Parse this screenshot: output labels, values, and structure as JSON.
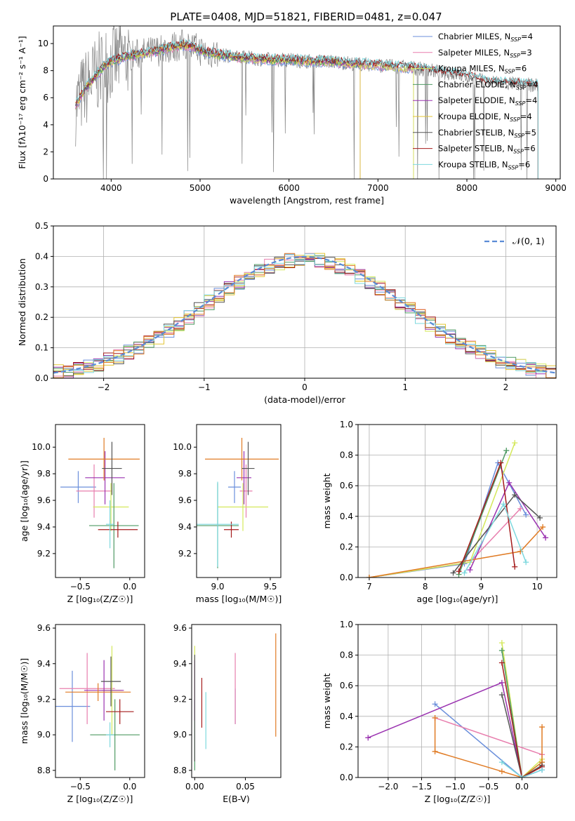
{
  "figure": {
    "title": "PLATE=0408, MJD=51821, FIBERID=0481, z=0.047"
  },
  "chart_data": [
    {
      "id": "spectrum",
      "type": "line",
      "xlabel": "wavelength [Angstrom, rest frame]",
      "ylabel": "Flux [fλ10⁻¹⁷ erg cm⁻² s⁻¹ A⁻¹]",
      "xlim": [
        3350,
        9050
      ],
      "ylim": [
        0,
        11.3
      ],
      "xticks": [
        4000,
        5000,
        6000,
        7000,
        8000,
        9000
      ],
      "yticks": [
        0,
        2,
        4,
        6,
        8,
        10
      ],
      "legend_position": "top-right",
      "data_series": {
        "x": [
          3600,
          3700,
          3800,
          3900,
          4000,
          4200,
          4400,
          4600,
          4800,
          4900,
          5000,
          5200,
          5400,
          5600,
          5800,
          6000,
          6200,
          6400,
          6600,
          6800,
          7000,
          7200,
          7400,
          7600,
          7800,
          8000,
          8200,
          8400,
          8600,
          8800
        ],
        "y": [
          5.4,
          6.6,
          7.4,
          8.2,
          8.7,
          9.1,
          9.3,
          9.6,
          9.9,
          9.8,
          9.5,
          9.2,
          9.0,
          8.9,
          8.8,
          8.8,
          8.7,
          8.7,
          8.6,
          8.5,
          8.4,
          8.3,
          8.2,
          8.0,
          7.8,
          7.6,
          7.2,
          7.1,
          7.0,
          6.9
        ]
      },
      "series": [
        {
          "name": "Chabrier MILES, N_SSP=4",
          "label_text": "Chabrier MILES, N",
          "sub": "SSP",
          "label_tail": "=4",
          "color": "#6b8fdb",
          "xmax": 7400
        },
        {
          "name": "Salpeter MILES, N_SSP=3",
          "label_text": "Salpeter MILES, N",
          "sub": "SSP",
          "label_tail": "=3",
          "color": "#e87fae",
          "xmax": 7400
        },
        {
          "name": "Kroupa MILES, N_SSP=6",
          "label_text": "Kroupa MILES, N",
          "sub": "SSP",
          "label_tail": "=6",
          "color": "#d4e85a",
          "xmax": 7400
        },
        {
          "name": "Chabrier ELODIE, N_SSP=4",
          "label_text": "Chabrier ELODIE, N",
          "sub": "SSP",
          "label_tail": "=4",
          "color": "#4e9a63",
          "xmax": 6800
        },
        {
          "name": "Salpeter ELODIE, N_SSP=4",
          "label_text": "Salpeter ELODIE, N",
          "sub": "SSP",
          "label_tail": "=4",
          "color": "#9a32b0",
          "xmax": 6800
        },
        {
          "name": "Kroupa ELODIE, N_SSP=4",
          "label_text": "Kroupa ELODIE, N",
          "sub": "SSP",
          "label_tail": "=4",
          "color": "#e3c535",
          "xmax": 6800
        },
        {
          "name": "Chabrier STELIB, N_SSP=5",
          "label_text": "Chabrier STELIB, N",
          "sub": "SSP",
          "label_tail": "=5",
          "color": "#555555",
          "xmax": 8800
        },
        {
          "name": "Salpeter STELIB, N_SSP=6",
          "label_text": "Salpeter STELIB, N",
          "sub": "SSP",
          "label_tail": "=6",
          "color": "#a51c1c",
          "xmax": 8800
        },
        {
          "name": "Kroupa STELIB, N_SSP=6",
          "label_text": "Kroupa STELIB, N",
          "sub": "SSP",
          "label_tail": "=6",
          "color": "#7dd8de",
          "xmax": 8800
        }
      ]
    },
    {
      "id": "residuals",
      "type": "area",
      "xlabel": "(data-model)/error",
      "ylabel": "Normed distribution",
      "xlim": [
        -2.5,
        2.5
      ],
      "ylim": [
        0,
        0.5
      ],
      "xticks": [
        -2,
        -1,
        0,
        1,
        2
      ],
      "yticks": [
        0.0,
        0.1,
        0.2,
        0.3,
        0.4,
        0.5
      ],
      "grid": true,
      "legend": "𝒩(0, 1)",
      "legend_position": "top-right",
      "bin_width": 0.1,
      "histogram_colors": [
        "#6b8fdb",
        "#e87fae",
        "#d4e85a",
        "#4e9a63",
        "#9a32b0",
        "#e3c535",
        "#555555",
        "#a51c1c",
        "#7dd8de",
        "#e07b24"
      ],
      "curve": {
        "name": "𝒩(0, 1)",
        "color": "#5b8bd6",
        "style": "dashed"
      }
    },
    {
      "id": "age_vs_Z",
      "type": "scatter",
      "xlabel": "Z [log₁₀(Z/Z☉)]",
      "ylabel": "age  [log₁₀(age/yr)]",
      "xlim": [
        -0.75,
        0.15
      ],
      "ylim": [
        9.02,
        10.17
      ],
      "xticks": [
        -0.5,
        0.0
      ],
      "yticks": [
        9.2,
        9.4,
        9.6,
        9.8,
        10.0
      ],
      "points": [
        {
          "x": -0.52,
          "y": 9.7,
          "xerr": 0.18,
          "yerr": 0.12,
          "color": "#6b8fdb"
        },
        {
          "x": -0.36,
          "y": 9.67,
          "xerr": 0.18,
          "yerr": 0.2,
          "color": "#e87fae"
        },
        {
          "x": -0.19,
          "y": 9.55,
          "xerr": 0.18,
          "yerr": 0.18,
          "color": "#d4e85a"
        },
        {
          "x": -0.16,
          "y": 9.41,
          "xerr": 0.25,
          "yerr": 0.32,
          "color": "#4e9a63"
        },
        {
          "x": -0.25,
          "y": 9.77,
          "xerr": 0.2,
          "yerr": 0.2,
          "color": "#9a32b0"
        },
        {
          "x": -0.26,
          "y": 9.91,
          "xerr": 0.36,
          "yerr": 0.16,
          "color": "#e07b24"
        },
        {
          "x": -0.18,
          "y": 9.84,
          "xerr": 0.1,
          "yerr": 0.2,
          "color": "#555555"
        },
        {
          "x": -0.12,
          "y": 9.38,
          "xerr": 0.2,
          "yerr": 0.06,
          "color": "#a51c1c"
        },
        {
          "x": -0.2,
          "y": 9.42,
          "xerr": 0.04,
          "yerr": 0.18,
          "color": "#7dd8de"
        }
      ]
    },
    {
      "id": "age_vs_mass",
      "type": "scatter",
      "xlabel": "mass [log₁₀(M/M☉)]",
      "ylabel": "",
      "xlim": [
        8.8,
        9.6
      ],
      "ylim": [
        9.02,
        10.17
      ],
      "xticks": [
        9.0,
        9.5
      ],
      "yticks": [
        9.2,
        9.4,
        9.6,
        9.8,
        10.0
      ],
      "points": [
        {
          "x": 9.16,
          "y": 9.7,
          "xerr": 0.06,
          "yerr": 0.12,
          "color": "#6b8fdb"
        },
        {
          "x": 9.27,
          "y": 9.67,
          "xerr": 0.06,
          "yerr": 0.2,
          "color": "#e87fae"
        },
        {
          "x": 9.24,
          "y": 9.55,
          "xerr": 0.24,
          "yerr": 0.18,
          "color": "#d4e85a"
        },
        {
          "x": 9.0,
          "y": 9.41,
          "xerr": 0.2,
          "yerr": 0.32,
          "color": "#4e9a63"
        },
        {
          "x": 9.25,
          "y": 9.77,
          "xerr": 0.07,
          "yerr": 0.2,
          "color": "#9a32b0"
        },
        {
          "x": 9.23,
          "y": 9.91,
          "xerr": 0.35,
          "yerr": 0.16,
          "color": "#e07b24"
        },
        {
          "x": 9.29,
          "y": 9.84,
          "xerr": 0.06,
          "yerr": 0.2,
          "color": "#555555"
        },
        {
          "x": 9.13,
          "y": 9.38,
          "xerr": 0.07,
          "yerr": 0.06,
          "color": "#a51c1c"
        },
        {
          "x": 9.0,
          "y": 9.42,
          "xerr": 0.2,
          "yerr": 0.32,
          "color": "#7dd8de"
        }
      ]
    },
    {
      "id": "weight_vs_age",
      "type": "line",
      "xlabel": "age  [log₁₀(age/yr)]",
      "ylabel": "mass weight",
      "xlim": [
        6.8,
        10.35
      ],
      "ylim": [
        0.0,
        1.0
      ],
      "xticks": [
        7,
        8,
        9,
        10
      ],
      "yticks": [
        0.0,
        0.2,
        0.4,
        0.6,
        0.8,
        1.0
      ],
      "grid": true,
      "series": [
        {
          "color": "#6b8fdb",
          "x": [
            7.0,
            8.7,
            9.3,
            9.8
          ],
          "y": [
            0.0,
            0.09,
            0.75,
            0.41
          ]
        },
        {
          "color": "#e87fae",
          "x": [
            7.0,
            8.8,
            9.7
          ],
          "y": [
            0.0,
            0.1,
            0.45
          ]
        },
        {
          "color": "#d4e85a",
          "x": [
            7.0,
            8.8,
            9.6
          ],
          "y": [
            0.0,
            0.1,
            0.88
          ]
        },
        {
          "color": "#4e9a63",
          "x": [
            8.6,
            9.45
          ],
          "y": [
            0.02,
            0.83
          ]
        },
        {
          "color": "#9a32b0",
          "x": [
            8.8,
            9.5,
            10.15
          ],
          "y": [
            0.05,
            0.62,
            0.26
          ]
        },
        {
          "color": "#e07b24",
          "x": [
            7.0,
            9.7,
            10.1
          ],
          "y": [
            0.0,
            0.17,
            0.33
          ]
        },
        {
          "color": "#555555",
          "x": [
            8.5,
            9.6,
            10.05
          ],
          "y": [
            0.03,
            0.54,
            0.39
          ]
        },
        {
          "color": "#a51c1c",
          "x": [
            8.6,
            9.35,
            9.6
          ],
          "y": [
            0.04,
            0.75,
            0.07
          ]
        },
        {
          "color": "#7dd8de",
          "x": [
            8.7,
            9.4,
            9.8
          ],
          "y": [
            0.03,
            0.48,
            0.1
          ]
        }
      ]
    },
    {
      "id": "mass_vs_Z",
      "type": "scatter",
      "xlabel": "Z [log₁₀(Z/Z☉)]",
      "ylabel": "mass [log₁₀(M/M☉)]",
      "xlim": [
        -0.75,
        0.15
      ],
      "ylim": [
        8.76,
        9.62
      ],
      "xticks": [
        -0.5,
        0.0
      ],
      "yticks": [
        8.8,
        9.0,
        9.2,
        9.4,
        9.6
      ],
      "points": [
        {
          "x": -0.58,
          "y": 9.16,
          "xerr": 0.18,
          "yerr": 0.2,
          "color": "#6b8fdb"
        },
        {
          "x": -0.43,
          "y": 9.26,
          "xerr": 0.28,
          "yerr": 0.2,
          "color": "#e87fae"
        },
        {
          "x": -0.18,
          "y": 9.25,
          "xerr": 0.1,
          "yerr": 0.25,
          "color": "#d4e85a"
        },
        {
          "x": -0.15,
          "y": 9.0,
          "xerr": 0.25,
          "yerr": 0.2,
          "color": "#4e9a63"
        },
        {
          "x": -0.26,
          "y": 9.25,
          "xerr": 0.2,
          "yerr": 0.17,
          "color": "#9a32b0"
        },
        {
          "x": -0.32,
          "y": 9.24,
          "xerr": 0.33,
          "yerr": 0.05,
          "color": "#e07b24"
        },
        {
          "x": -0.19,
          "y": 9.3,
          "xerr": 0.1,
          "yerr": 0.14,
          "color": "#555555"
        },
        {
          "x": -0.1,
          "y": 9.13,
          "xerr": 0.14,
          "yerr": 0.07,
          "color": "#a51c1c"
        },
        {
          "x": -0.2,
          "y": 9.0,
          "xerr": 0.04,
          "yerr": 0.07,
          "color": "#7dd8de"
        }
      ]
    },
    {
      "id": "mass_vs_ebv",
      "type": "scatter",
      "xlabel": "E(B-V)",
      "ylabel": "",
      "xlim": [
        -0.003,
        0.085
      ],
      "ylim": [
        8.76,
        9.62
      ],
      "xticks": [
        0.0,
        0.05
      ],
      "yticks": [
        8.8,
        9.0,
        9.2,
        9.4,
        9.6
      ],
      "points": [
        {
          "x": 0.04,
          "y": 9.16,
          "yerr": 0.1,
          "color": "#6b8fdb"
        },
        {
          "x": 0.04,
          "y": 9.26,
          "yerr": 0.2,
          "color": "#e87fae"
        },
        {
          "x": 0.0,
          "y": 9.35,
          "yerr": 0.15,
          "color": "#d4e85a"
        },
        {
          "x": 0.0,
          "y": 9.0,
          "yerr": 0.2,
          "color": "#4e9a63"
        },
        {
          "x": 0.0,
          "y": 9.25,
          "yerr": 0.17,
          "color": "#9a32b0"
        },
        {
          "x": 0.08,
          "y": 9.28,
          "yerr": 0.29,
          "color": "#e07b24"
        },
        {
          "x": 0.0,
          "y": 9.15,
          "yerr": 0.3,
          "color": "#555555"
        },
        {
          "x": 0.007,
          "y": 9.18,
          "yerr": 0.14,
          "color": "#a51c1c"
        },
        {
          "x": 0.011,
          "y": 9.08,
          "yerr": 0.16,
          "color": "#7dd8de"
        }
      ]
    },
    {
      "id": "weight_vs_Z",
      "type": "line",
      "xlabel": "Z [log₁₀(Z/Z☉)]",
      "ylabel": "mass weight",
      "xlim": [
        -2.45,
        0.52
      ],
      "ylim": [
        0.0,
        1.0
      ],
      "xticks": [
        -2.0,
        -1.5,
        -1.0,
        -0.5,
        0.0
      ],
      "yticks": [
        0.0,
        0.2,
        0.4,
        0.6,
        0.8,
        1.0
      ],
      "grid": true,
      "series": [
        {
          "color": "#6b8fdb",
          "x": [
            -1.3,
            0.0,
            0.3
          ],
          "y": [
            0.48,
            0.0,
            0.05
          ]
        },
        {
          "color": "#e87fae",
          "x": [
            -1.3,
            0.3
          ],
          "y": [
            0.39,
            0.15
          ]
        },
        {
          "color": "#d4e85a",
          "x": [
            -0.3,
            0.0,
            0.3
          ],
          "y": [
            0.88,
            0.0,
            0.12
          ]
        },
        {
          "color": "#4e9a63",
          "x": [
            -0.3,
            0.0,
            0.3
          ],
          "y": [
            0.83,
            0.0,
            0.1
          ]
        },
        {
          "color": "#9a32b0",
          "x": [
            -2.3,
            -0.3,
            0.0
          ],
          "y": [
            0.26,
            0.62,
            0.0
          ]
        },
        {
          "color": "#e07b24",
          "x": [
            -1.3,
            -1.3,
            -0.3,
            0.0,
            0.3,
            0.3
          ],
          "y": [
            0.39,
            0.17,
            0.04,
            0.0,
            0.1,
            0.33
          ]
        },
        {
          "color": "#555555",
          "x": [
            -0.3,
            0.0,
            0.3
          ],
          "y": [
            0.54,
            0.0,
            0.08
          ]
        },
        {
          "color": "#a51c1c",
          "x": [
            -0.3,
            0.0,
            0.3
          ],
          "y": [
            0.75,
            0.0,
            0.07
          ]
        },
        {
          "color": "#7dd8de",
          "x": [
            -0.3,
            0.0,
            0.3
          ],
          "y": [
            0.1,
            0.0,
            0.05
          ]
        }
      ]
    }
  ]
}
